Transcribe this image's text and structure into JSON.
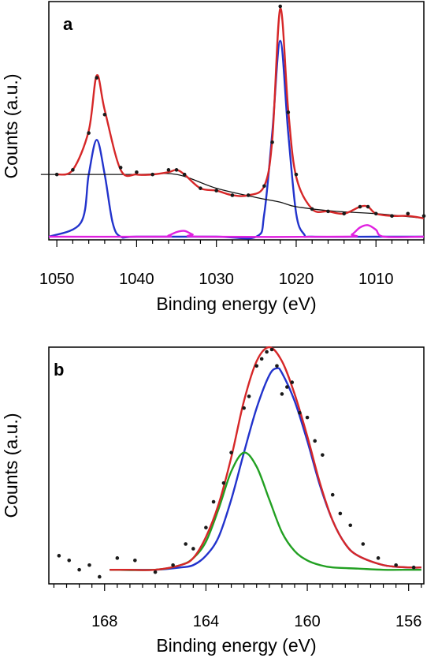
{
  "chart_data": [
    {
      "type": "line",
      "panel_label": "a",
      "xlabel": "Binding energy (eV)",
      "ylabel": "Counts (a.u.)",
      "xlim": [
        1051,
        1004
      ],
      "x_reversed": true,
      "ylim": [
        0,
        1
      ],
      "y_ticks": false,
      "xticks": [
        1050,
        1040,
        1030,
        1020,
        1010
      ],
      "grid": false,
      "legend": "none",
      "series": [
        {
          "role": "measured data",
          "style": "points",
          "color": "#1a1a1a",
          "x": [
            1050,
            1048,
            1046,
            1045,
            1044,
            1042,
            1040,
            1038,
            1036,
            1035,
            1034,
            1032,
            1030,
            1028,
            1026,
            1024,
            1023,
            1022,
            1021,
            1020,
            1018,
            1016,
            1014,
            1012,
            1011,
            1010,
            1008,
            1006,
            1004
          ],
          "y": [
            0.27,
            0.29,
            0.45,
            0.69,
            0.53,
            0.3,
            0.28,
            0.27,
            0.29,
            0.29,
            0.27,
            0.21,
            0.2,
            0.18,
            0.18,
            0.22,
            0.41,
            1.0,
            0.54,
            0.27,
            0.12,
            0.11,
            0.1,
            0.13,
            0.13,
            0.1,
            0.09,
            0.1,
            0.09
          ]
        },
        {
          "role": "envelope fit",
          "style": "line",
          "color": "#d62728",
          "x": [
            1050,
            1048,
            1046,
            1045,
            1044,
            1042,
            1040,
            1038,
            1036,
            1035,
            1034,
            1032,
            1030,
            1028,
            1026,
            1024,
            1023,
            1022,
            1021,
            1020,
            1018,
            1016,
            1014,
            1012,
            1011,
            1010,
            1008,
            1006,
            1004
          ],
          "y": [
            0.27,
            0.29,
            0.46,
            0.7,
            0.55,
            0.29,
            0.27,
            0.27,
            0.28,
            0.29,
            0.27,
            0.21,
            0.2,
            0.18,
            0.18,
            0.22,
            0.42,
            0.99,
            0.55,
            0.26,
            0.12,
            0.11,
            0.1,
            0.13,
            0.13,
            0.1,
            0.09,
            0.09,
            0.08
          ]
        },
        {
          "role": "background",
          "style": "line",
          "color": "#111111",
          "x": [
            1052,
            1040,
            1035,
            1030,
            1025,
            1022,
            1020,
            1015,
            1010,
            1004
          ],
          "y": [
            0.27,
            0.27,
            0.27,
            0.21,
            0.17,
            0.15,
            0.13,
            0.11,
            0.1,
            0.08
          ]
        },
        {
          "role": "component peak",
          "style": "line",
          "color": "#2233cc",
          "x": [
            1051,
            1047,
            1046,
            1045,
            1044,
            1043,
            1042,
            1040,
            1030,
            1025,
            1024,
            1023,
            1022,
            1021,
            1020,
            1019,
            1018,
            1010,
            1004
          ],
          "y": [
            0.0,
            0.06,
            0.27,
            0.42,
            0.27,
            0.06,
            0.0,
            0.0,
            0.0,
            0.0,
            0.1,
            0.45,
            0.85,
            0.45,
            0.1,
            0.01,
            0.0,
            0.0,
            0.0
          ]
        },
        {
          "role": "satellite component",
          "style": "line",
          "color": "#e020e0",
          "x": [
            1051,
            1037,
            1036,
            1035,
            1034,
            1033,
            1032,
            1014,
            1013,
            1012,
            1011,
            1010,
            1009,
            1004
          ],
          "y": [
            0.0,
            0.0,
            0.005,
            0.02,
            0.025,
            0.01,
            0.0,
            0.0,
            0.01,
            0.04,
            0.05,
            0.03,
            0.0,
            0.0
          ]
        }
      ]
    },
    {
      "type": "line",
      "panel_label": "b",
      "xlabel": "Binding energy (eV)",
      "ylabel": "Counts (a.u.)",
      "xlim": [
        170.2,
        155.4
      ],
      "x_reversed": true,
      "ylim": [
        0,
        1
      ],
      "y_ticks": false,
      "xticks": [
        168,
        164,
        160,
        156
      ],
      "grid": false,
      "legend": "none",
      "series": [
        {
          "role": "measured data",
          "style": "points",
          "color": "#1a1a1a",
          "x": [
            169.8,
            169.4,
            169.0,
            168.6,
            168.2,
            167.5,
            166.8,
            166.0,
            165.3,
            164.8,
            164.5,
            164.0,
            163.7,
            163.3,
            163.0,
            162.5,
            162.3,
            162.0,
            161.8,
            161.6,
            161.4,
            161.2,
            161.0,
            160.8,
            160.6,
            160.3,
            160.0,
            159.7,
            159.4,
            159.0,
            158.7,
            158.3,
            157.8,
            157.2,
            156.5,
            155.8
          ],
          "y": [
            0.12,
            0.1,
            0.06,
            0.08,
            0.03,
            0.11,
            0.1,
            0.05,
            0.08,
            0.17,
            0.15,
            0.24,
            0.35,
            0.43,
            0.56,
            0.75,
            0.8,
            0.93,
            0.96,
            0.99,
            1.0,
            0.93,
            0.81,
            0.84,
            0.86,
            0.73,
            0.71,
            0.61,
            0.55,
            0.38,
            0.3,
            0.25,
            0.17,
            0.11,
            0.08,
            0.07
          ]
        },
        {
          "role": "envelope fit",
          "style": "line",
          "color": "#d62728",
          "x": [
            167.8,
            167.0,
            166.0,
            165.0,
            164.5,
            164.0,
            163.5,
            163.0,
            162.5,
            162.0,
            161.5,
            161.0,
            160.5,
            160.0,
            159.5,
            159.0,
            158.5,
            158.0,
            157.0,
            156.0,
            155.5
          ],
          "y": [
            0.06,
            0.06,
            0.06,
            0.08,
            0.11,
            0.2,
            0.34,
            0.54,
            0.78,
            0.95,
            1.01,
            0.95,
            0.81,
            0.63,
            0.43,
            0.27,
            0.17,
            0.12,
            0.08,
            0.07,
            0.07
          ]
        },
        {
          "role": "component peak",
          "style": "line",
          "color": "#2233cc",
          "x": [
            167.8,
            166.0,
            165.0,
            164.5,
            164.0,
            163.5,
            163.0,
            162.5,
            162.0,
            161.5,
            161.2,
            161.0,
            160.5,
            160.0,
            159.5,
            159.0,
            158.5,
            158.0,
            157.0,
            156.0,
            155.5
          ],
          "y": [
            0.06,
            0.06,
            0.07,
            0.08,
            0.12,
            0.2,
            0.36,
            0.56,
            0.75,
            0.89,
            0.92,
            0.9,
            0.78,
            0.61,
            0.42,
            0.27,
            0.17,
            0.12,
            0.08,
            0.07,
            0.07
          ]
        },
        {
          "role": "component peak",
          "style": "line",
          "color": "#22a022",
          "x": [
            167.8,
            166.0,
            165.0,
            164.5,
            164.0,
            163.5,
            163.0,
            162.5,
            162.0,
            161.5,
            161.0,
            160.5,
            160.0,
            159.5,
            159.0,
            158.0,
            157.0,
            156.0,
            155.5
          ],
          "y": [
            0.06,
            0.06,
            0.08,
            0.11,
            0.18,
            0.32,
            0.48,
            0.56,
            0.5,
            0.36,
            0.22,
            0.14,
            0.1,
            0.08,
            0.07,
            0.065,
            0.06,
            0.06,
            0.06
          ]
        }
      ]
    }
  ]
}
